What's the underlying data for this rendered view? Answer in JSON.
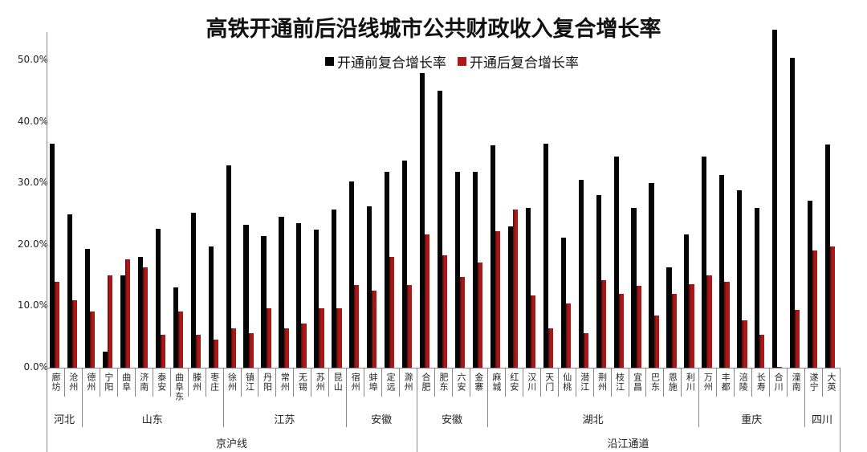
{
  "chart_data": {
    "type": "bar",
    "title": "高铁开通前后沿线城市公共财政收入复合增长率",
    "xlabel": "",
    "ylabel": "",
    "ylim": [
      0,
      55
    ],
    "y_ticks": [
      "0.0%",
      "10.0%",
      "20.0%",
      "30.0%",
      "40.0%",
      "50.0%"
    ],
    "grid": false,
    "legend_position": "top",
    "categories": [
      "廊坊",
      "沧州",
      "德州",
      "宁阳",
      "曲阜",
      "济南",
      "泰安",
      "曲阜东",
      "滕州",
      "枣庄",
      "徐州",
      "镇江",
      "丹阳",
      "常州",
      "无锡",
      "苏州",
      "昆山",
      "宿州",
      "蚌埠",
      "定远",
      "滁州",
      "合肥",
      "肥东",
      "六安",
      "金寨",
      "麻城",
      "红安",
      "汉川",
      "天门",
      "仙桃",
      "潜江",
      "荆州",
      "枝江",
      "宜昌",
      "巴东",
      "恩施",
      "利川",
      "万州",
      "丰都",
      "涪陵",
      "长寿",
      "合川",
      "潼南",
      "遂宁",
      "大英"
    ],
    "series": [
      {
        "name": "开通前复合增长率",
        "color": "#050505",
        "values": [
          36.4,
          25.0,
          19.3,
          2.6,
          15.0,
          18.0,
          22.6,
          13.0,
          25.2,
          19.7,
          32.9,
          23.2,
          21.4,
          24.5,
          23.5,
          22.5,
          25.7,
          30.3,
          26.2,
          31.9,
          33.7,
          47.9,
          45.0,
          31.9,
          31.9,
          36.2,
          23.0,
          26.0,
          36.4,
          21.1,
          30.5,
          28.1,
          34.3,
          26.0,
          30.0,
          16.3,
          21.7,
          34.3,
          31.3,
          28.9,
          26.0,
          55.0,
          50.4,
          27.2,
          36.3
        ]
      },
      {
        "name": "开通后复合增长率",
        "color": "#a31515",
        "values": [
          14.0,
          11.0,
          9.1,
          15.0,
          17.6,
          16.3,
          5.4,
          9.1,
          5.4,
          4.6,
          6.4,
          5.6,
          9.7,
          6.4,
          7.2,
          9.7,
          9.7,
          13.4,
          12.5,
          18.0,
          13.4,
          21.7,
          18.3,
          14.7,
          17.1,
          22.2,
          25.7,
          11.7,
          6.4,
          10.4,
          5.6,
          14.2,
          12.0,
          13.3,
          8.5,
          12.0,
          13.6,
          15.0,
          14.0,
          7.7,
          5.4,
          0.1,
          9.4,
          19.1,
          19.7
        ]
      }
    ],
    "province_groups": [
      {
        "label": "河北",
        "count": 2
      },
      {
        "label": "山东",
        "count": 8
      },
      {
        "label": "江苏",
        "count": 7
      },
      {
        "label": "安徽",
        "count": 4
      },
      {
        "label": "安徽",
        "count": 4
      },
      {
        "label": "湖北",
        "count": 12
      },
      {
        "label": "重庆",
        "count": 6
      },
      {
        "label": "四川",
        "count": 2
      }
    ],
    "line_groups": [
      {
        "label": "京沪线",
        "count": 21
      },
      {
        "label": "沿江通道",
        "count": 24
      }
    ]
  }
}
